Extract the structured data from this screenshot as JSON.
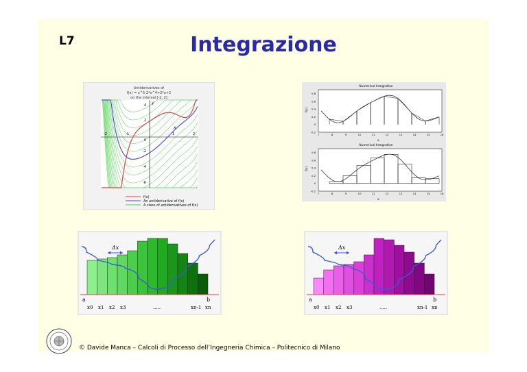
{
  "slide": {
    "lecture_code": "L7",
    "title": "Integrazione",
    "footer": "© Davide Manca – Calcoli di Processo dell’Ingegneria Chimica – Politecnico di Milano"
  },
  "antiderivative_plot": {
    "heading_lines": [
      "Antiderivatives of",
      "f(x) = x^5-2*x^4+2*x+2",
      "on the interval [-2, 2]"
    ],
    "x_ticks": [
      "-2",
      "-1",
      "1",
      "2"
    ],
    "y_ticks": [
      "4",
      "2",
      "-2",
      "-4",
      "-6"
    ],
    "zero_label": "0",
    "x_axis_letter": "x",
    "y_axis_letter": "y",
    "legend": [
      {
        "label": "f(x)",
        "color": "#e04040"
      },
      {
        "label": "An antiderivative of f(x)",
        "color": "#5050e0"
      },
      {
        "label": "A class of antiderivatives of f(x)",
        "color": "#50d050"
      }
    ]
  },
  "numerical_top": {
    "title": "Numerical Integration",
    "ylabel": "f(x)",
    "xlabel": "x",
    "y_ticks": [
      "0.8",
      "0.6",
      "0.4",
      "0.2",
      "0",
      "-0.2"
    ],
    "x_ticks": [
      "7",
      "8",
      "9",
      "10",
      "11",
      "12",
      "13",
      "14",
      "15",
      "16"
    ]
  },
  "numerical_bottom": {
    "title": "Numerical Integration",
    "ylabel": "f(x)",
    "xlabel": "x",
    "y_ticks": [
      "0.8",
      "0.6",
      "0.4",
      "0.2",
      "0",
      "-0.2"
    ],
    "x_ticks": [
      "7",
      "8",
      "9",
      "10",
      "11",
      "12",
      "13",
      "14",
      "15",
      "16"
    ]
  },
  "green_riemann": {
    "dx_label": "Δx",
    "a_label": "a",
    "b_label": "b",
    "x_labels": [
      "x0",
      "x1",
      "x2",
      "x3",
      ".....",
      "xn-1",
      "xn"
    ]
  },
  "magenta_riemann": {
    "dx_label": "Δx",
    "a_label": "a",
    "b_label": "b",
    "x_labels": [
      "x0",
      "x1",
      "x2",
      "x3",
      ".....",
      "xn-1",
      "xn"
    ]
  }
}
